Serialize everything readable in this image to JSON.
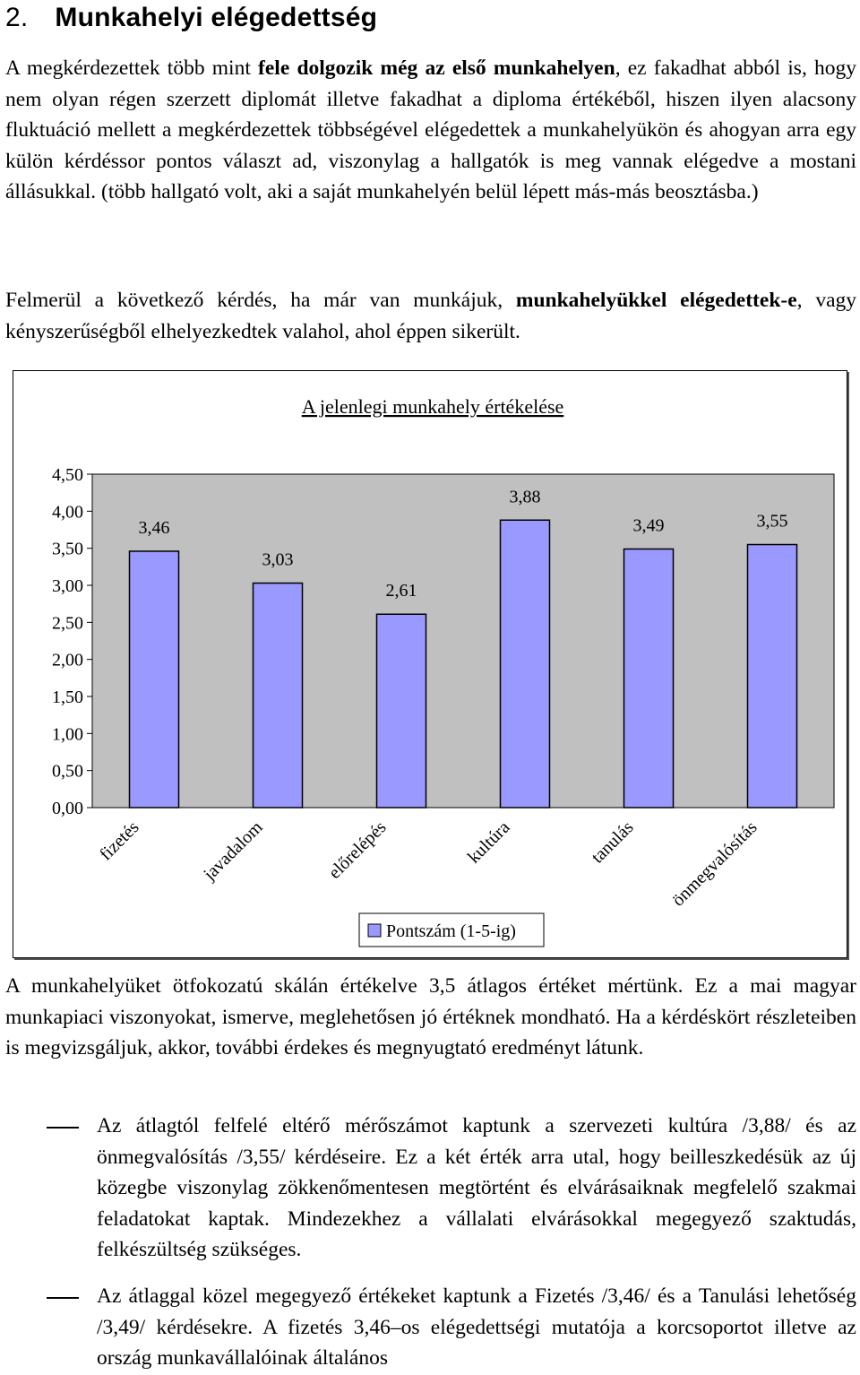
{
  "heading": {
    "number": "2.",
    "title": "Munkahelyi elégedettség"
  },
  "intro": {
    "p1_a": "A megkérdezettek több mint ",
    "p1_bold": "fele dolgozik még az első munkahelyen",
    "p1_b": ", ez fakadhat abból is, hogy nem olyan régen szerzett diplomát illetve fakadhat a diploma értékéből, hiszen ilyen alacsony fluktuáció mellett a megkérdezettek többségével elégedettek a munkahelyükön és ahogyan arra egy külön kérdéssor pontos választ ad, viszonylag a hallgatók is meg vannak elégedve a mostani állásukkal. (több hallgató volt, aki a saját munkahelyén belül lépett más-más beosztásba.)",
    "p2_a": "Felmerül a következő kérdés, ha már van munkájuk, ",
    "p2_bold": "munkahelyükkel elégedettek-e",
    "p2_b": ", vagy kényszerűségből elhelyezkedtek valahol, ahol éppen sikerült."
  },
  "chart_data": {
    "type": "bar",
    "title": "A jelenlegi munkahely értékelése",
    "categories": [
      "fizetés",
      "javadalom",
      "előrelépés",
      "kultúra",
      "tanulás",
      "önmegvalósítás"
    ],
    "values": [
      3.46,
      3.03,
      2.61,
      3.88,
      3.49,
      3.55
    ],
    "value_labels": [
      "3,46",
      "3,03",
      "2,61",
      "3,88",
      "3,49",
      "3,55"
    ],
    "ylim": [
      0,
      4.5
    ],
    "y_ticks": [
      "0,00",
      "0,50",
      "1,00",
      "1,50",
      "2,00",
      "2,50",
      "3,00",
      "3,50",
      "4,00",
      "4,50"
    ],
    "series": [
      {
        "name": "Pontszám (1-5-ig)",
        "values": [
          3.46,
          3.03,
          2.61,
          3.88,
          3.49,
          3.55
        ]
      }
    ],
    "legend_position": "bottom",
    "grid": false,
    "colors": {
      "bar": "#9999ff",
      "plot_bg": "#c0c0c0"
    }
  },
  "summary": {
    "p3": "A munkahelyüket ötfokozatú skálán értékelve 3,5 átlagos értéket mértünk. Ez a mai magyar munkapiaci viszonyokat, ismerve, meglehetősen jó értéknek mondható. Ha a kérdéskört részleteiben is megvizsgáljuk, akkor, további érdekes és megnyugtató eredményt látunk.",
    "bullet1": "Az átlagtól felfelé eltérő mérőszámot kaptunk a szervezeti kultúra /3,88/ és az önmegvalósítás /3,55/ kérdéseire. Ez a két érték arra utal, hogy beilleszkedésük az új közegbe viszonylag zökkenőmentesen megtörtént és elvárásaiknak megfelelő szakmai feladatokat kaptak. Mindezekhez a vállalati elvárásokkal megegyező szaktudás, felkészültség szükséges.",
    "bullet2": "Az átlaggal közel megegyező értékeket kaptunk a Fizetés /3,46/ és a Tanulási lehetőség /3,49/ kérdésekre. A fizetés 3,46–os elégedettségi mutatója a korcsoportot illetve az ország munkavállalóinak általános"
  }
}
